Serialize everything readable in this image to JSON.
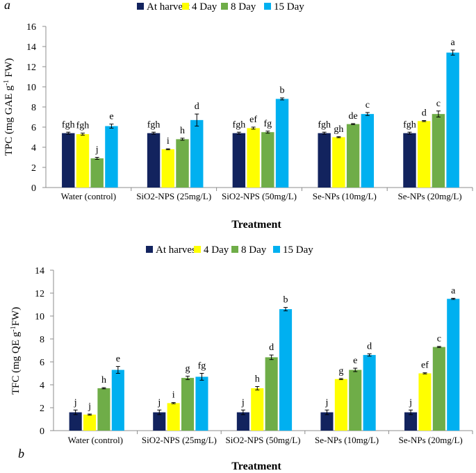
{
  "colors": {
    "series": [
      "#12235e",
      "#ffff00",
      "#6fad48",
      "#00b0f0"
    ],
    "axis": "#7f7f7f",
    "text": "#000000"
  },
  "chart_data": [
    {
      "panel": "a",
      "type": "bar",
      "title": "",
      "xlabel": "Treatment",
      "ylabel": "TPC (mg GAE g-1 FW)",
      "ylim": [
        0,
        16
      ],
      "yticks": [
        0,
        2,
        4,
        6,
        8,
        10,
        12,
        14,
        16
      ],
      "legend_position": "top",
      "categories": [
        "Water (control)",
        "SiO2-NPS (25mg/L)",
        "SiO2-NPS (50mg/L)",
        "Se-NPs (10mg/L)",
        "Se-NPs (20mg/L)"
      ],
      "series": [
        {
          "name": "At harvest",
          "values": [
            5.4,
            5.4,
            5.4,
            5.4,
            5.4
          ],
          "errors": [
            0.1,
            0.1,
            0.1,
            0.1,
            0.1
          ],
          "letters": [
            "fgh",
            "fgh",
            "fgh",
            "fgh",
            "fgh"
          ]
        },
        {
          "name": "4 Day",
          "values": [
            5.3,
            3.8,
            5.9,
            5.0,
            6.6
          ],
          "errors": [
            0.1,
            0.05,
            0.1,
            0.05,
            0.05
          ],
          "letters": [
            "fgh",
            "i",
            "ef",
            "gh",
            "d"
          ]
        },
        {
          "name": "8 Day",
          "values": [
            2.9,
            4.8,
            5.5,
            6.3,
            7.3
          ],
          "errors": [
            0.1,
            0.1,
            0.1,
            0.05,
            0.3
          ],
          "letters": [
            "j",
            "h",
            "fg",
            "de",
            "c"
          ]
        },
        {
          "name": "15 Day",
          "values": [
            6.1,
            6.7,
            8.8,
            7.3,
            13.4
          ],
          "errors": [
            0.2,
            0.6,
            0.1,
            0.15,
            0.25
          ],
          "letters": [
            "e",
            "d",
            "b",
            "c",
            "a"
          ]
        }
      ]
    },
    {
      "panel": "b",
      "type": "bar",
      "title": "",
      "xlabel": "Treatment",
      "ylabel": "TFC (mg QE g-1FW)",
      "ylim": [
        0,
        14
      ],
      "yticks": [
        0,
        2,
        4,
        6,
        8,
        10,
        12,
        14
      ],
      "legend_position": "top",
      "categories": [
        "Water (control)",
        "SiO2-NPS (25mg/L)",
        "SiO2-NPS (50mg/L)",
        "Se-NPs (10mg/L)",
        "Se-NPs (20mg/L)"
      ],
      "series": [
        {
          "name": "At harvest",
          "values": [
            1.6,
            1.6,
            1.6,
            1.6,
            1.6
          ],
          "errors": [
            0.2,
            0.2,
            0.2,
            0.2,
            0.2
          ],
          "letters": [
            "j",
            "j",
            "j",
            "j",
            "j"
          ]
        },
        {
          "name": "4 Day",
          "values": [
            1.4,
            2.4,
            3.7,
            4.5,
            5.0
          ],
          "errors": [
            0.05,
            0.05,
            0.15,
            0.05,
            0.05
          ],
          "letters": [
            "j",
            "i",
            "h",
            "g",
            "ef"
          ]
        },
        {
          "name": "8 Day",
          "values": [
            3.7,
            4.6,
            6.4,
            5.3,
            7.3
          ],
          "errors": [
            0.05,
            0.15,
            0.2,
            0.15,
            0.05
          ],
          "letters": [
            "h",
            "g",
            "d",
            "e",
            "c"
          ]
        },
        {
          "name": "15 Day",
          "values": [
            5.3,
            4.7,
            10.6,
            6.6,
            11.5
          ],
          "errors": [
            0.3,
            0.3,
            0.15,
            0.1,
            0.05
          ],
          "letters": [
            "e",
            "fg",
            "b",
            "d",
            "a"
          ]
        }
      ]
    }
  ]
}
